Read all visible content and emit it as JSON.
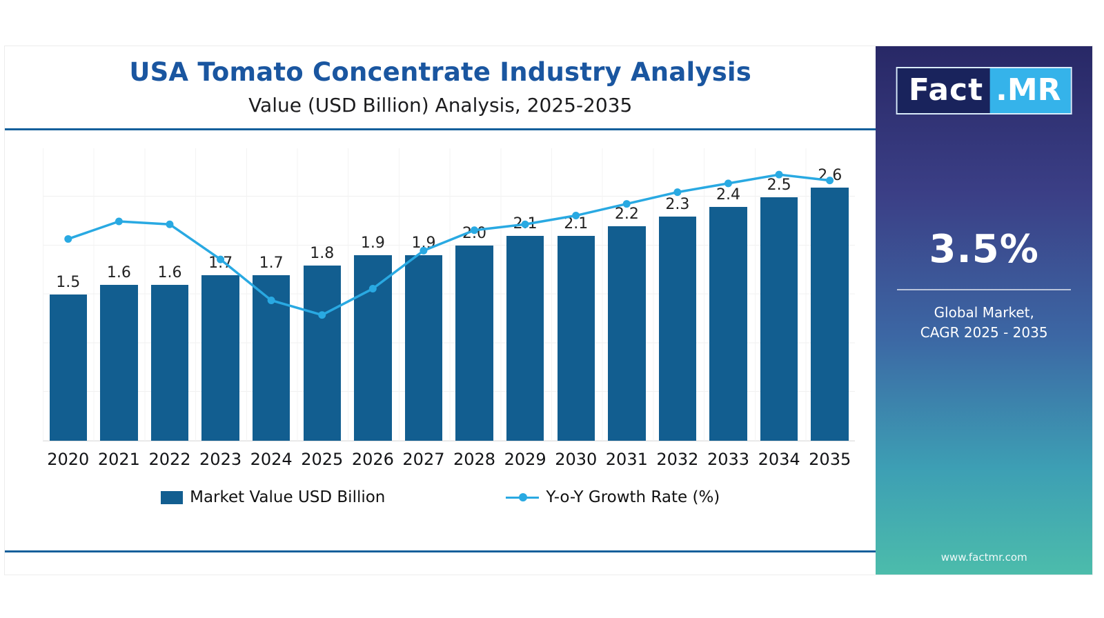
{
  "header": {
    "title": "USA Tomato Concentrate Industry Analysis",
    "subtitle": "Value (USD Billion) Analysis, 2025-2035"
  },
  "chart_data": {
    "type": "bar",
    "subtype": "bar-with-line-overlay",
    "title": "USA Tomato Concentrate Industry Analysis",
    "subtitle": "Value (USD Billion) Analysis, 2025-2035",
    "categories": [
      "2020",
      "2021",
      "2022",
      "2023",
      "2024",
      "2025",
      "2026",
      "2027",
      "2028",
      "2029",
      "2030",
      "2031",
      "2032",
      "2033",
      "2034",
      "2035"
    ],
    "series": [
      {
        "name": "Market Value USD Billion",
        "type": "bar",
        "values": [
          1.5,
          1.6,
          1.6,
          1.7,
          1.7,
          1.8,
          1.9,
          1.9,
          2.0,
          2.1,
          2.1,
          2.2,
          2.3,
          2.4,
          2.5,
          2.6
        ]
      },
      {
        "name": "Y-o-Y Growth Rate (%)",
        "type": "line",
        "note": "no numeric axis shown; points_norm are estimated heights as fraction of plot height from the baseline",
        "points_norm": [
          0.69,
          0.75,
          0.74,
          0.62,
          0.48,
          0.43,
          0.52,
          0.65,
          0.72,
          0.74,
          0.77,
          0.81,
          0.85,
          0.88,
          0.91,
          0.89
        ]
      }
    ],
    "ylim": [
      0,
      3.0
    ],
    "grid": "faint horizontal and vertical lines",
    "legend_position": "bottom",
    "value_label_decimals": 1
  },
  "legend": {
    "bar_label": "Market Value USD Billion",
    "line_label": "Y-o-Y Growth Rate (%)"
  },
  "sidebar": {
    "logo_fact": "Fact",
    "logo_mr": ".MR",
    "stat": "3.5%",
    "caption_line1": "Global Market,",
    "caption_line2": "CAGR 2025 - 2035",
    "url": "www.factmr.com"
  },
  "colors": {
    "bar": "#125e90",
    "line": "#29a9e2",
    "title": "#1a56a0",
    "rule": "#135f9b",
    "panel_gradient_top": "#282866",
    "panel_gradient_bottom": "#4cbcab"
  }
}
